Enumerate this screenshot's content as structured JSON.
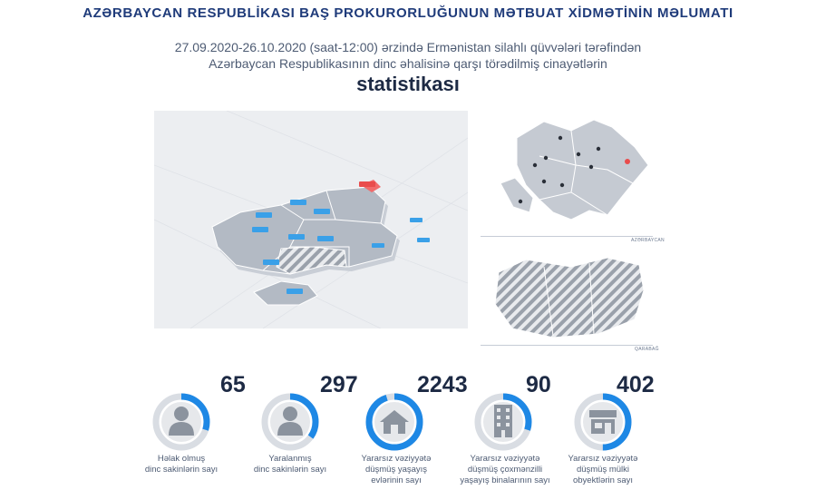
{
  "header": {
    "title": "AZƏRBAYCAN RESPUBLİKASI BAŞ PROKURORLUĞUNUN MƏTBUAT XİDMƏTİNİN MƏLUMATI",
    "line1": "27.09.2020-26.10.2020 (saat-12:00) ərzində Ermənistan silahlı qüvvələri tərəfindən",
    "line2": "Azərbaycan Respublikasının dinc əhalisinə qarşı törədilmiş cinayətlərin",
    "heading": "statistikası"
  },
  "maps": {
    "top_label": "AZƏRBAYCAN",
    "bottom_label": "QARABAĞ"
  },
  "stats": [
    {
      "value": "65",
      "caption": [
        "Həlak olmuş",
        "dinc sakinlərin sayı"
      ],
      "icon": "person-icon",
      "fill": 0.3
    },
    {
      "value": "297",
      "caption": [
        "Yaralanmış",
        "dinc sakinlərin sayı"
      ],
      "icon": "person-icon",
      "fill": 0.35
    },
    {
      "value": "2243",
      "caption": [
        "Yararsız vəziyyətə",
        "düşmüş yaşayış",
        "evlərinin sayı"
      ],
      "icon": "house-icon",
      "fill": 0.95
    },
    {
      "value": "90",
      "caption": [
        "Yararsız vəziyyətə",
        "düşmüş çoxmənzilli",
        "yaşayış binalarının sayı"
      ],
      "icon": "building-icon",
      "fill": 0.3
    },
    {
      "value": "402",
      "caption": [
        "Yararsız vəziyyətə",
        "düşmüş mülki",
        "obyektlərin sayı"
      ],
      "icon": "shop-icon",
      "fill": 0.5
    }
  ],
  "colors": {
    "accent": "#1e88e5",
    "ring_bg": "#d9dde3",
    "icon_bg": "#e6e8eb",
    "icon": "#8b939e",
    "title": "#1f3b7a"
  }
}
